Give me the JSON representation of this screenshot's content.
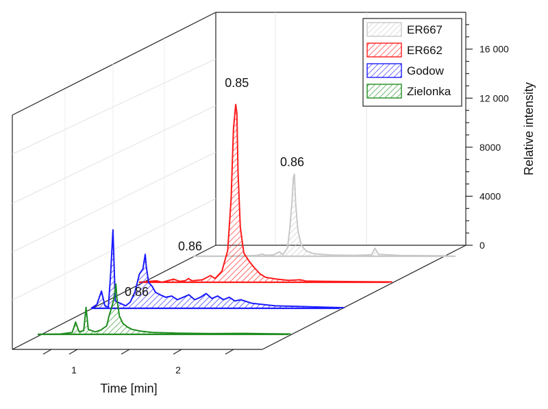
{
  "chart_data": {
    "type": "line",
    "subtype": "3d-waterfall",
    "xlabel": "Time [min]",
    "zlabel": "Relative intensity",
    "x_ticks": [
      1,
      2
    ],
    "z_ticks": [
      "0",
      "4000",
      "8000",
      "12 000",
      "16 000"
    ],
    "zlim": [
      0,
      19000
    ],
    "grid": true,
    "legend_position": "top-right",
    "series": [
      {
        "name": "ER667",
        "color": "#c8c8c8",
        "peak_label": "0.86",
        "peak_label_at": [
          0.86,
          7000
        ],
        "points": [
          [
            0.3,
            0
          ],
          [
            0.55,
            60
          ],
          [
            0.6,
            180
          ],
          [
            0.63,
            80
          ],
          [
            0.7,
            120
          ],
          [
            0.75,
            350
          ],
          [
            0.78,
            120
          ],
          [
            0.82,
            700
          ],
          [
            0.84,
            2300
          ],
          [
            0.86,
            4600
          ],
          [
            0.87,
            6400
          ],
          [
            0.88,
            6700
          ],
          [
            0.89,
            4400
          ],
          [
            0.91,
            2100
          ],
          [
            0.94,
            900
          ],
          [
            0.98,
            450
          ],
          [
            1.05,
            200
          ],
          [
            1.2,
            100
          ],
          [
            1.4,
            70
          ],
          [
            1.55,
            120
          ],
          [
            1.58,
            650
          ],
          [
            1.61,
            150
          ],
          [
            1.8,
            60
          ],
          [
            2.2,
            40
          ]
        ]
      },
      {
        "name": "ER662",
        "color": "#ff1a1a",
        "peak_label": "0.85",
        "peak_label_at": [
          0.85,
          15600
        ],
        "points": [
          [
            0.0,
            0
          ],
          [
            0.08,
            60
          ],
          [
            0.15,
            120
          ],
          [
            0.2,
            0
          ],
          [
            0.3,
            250
          ],
          [
            0.35,
            80
          ],
          [
            0.4,
            120
          ],
          [
            0.43,
            300
          ],
          [
            0.46,
            120
          ],
          [
            0.55,
            200
          ],
          [
            0.62,
            550
          ],
          [
            0.66,
            300
          ],
          [
            0.72,
            900
          ],
          [
            0.77,
            2600
          ],
          [
            0.8,
            6800
          ],
          [
            0.82,
            12500
          ],
          [
            0.84,
            14500
          ],
          [
            0.85,
            13800
          ],
          [
            0.86,
            9000
          ],
          [
            0.88,
            4500
          ],
          [
            0.91,
            2400
          ],
          [
            0.95,
            1800
          ],
          [
            1.0,
            1200
          ],
          [
            1.05,
            700
          ],
          [
            1.1,
            400
          ],
          [
            1.2,
            250
          ],
          [
            1.3,
            150
          ],
          [
            1.4,
            200
          ],
          [
            1.45,
            100
          ],
          [
            1.6,
            80
          ],
          [
            2.0,
            40
          ],
          [
            2.2,
            30
          ]
        ]
      },
      {
        "name": "Godow",
        "color": "#1a1aff",
        "peak_label": "0.86",
        "peak_label_at": [
          0.86,
          4400
        ],
        "points": [
          [
            0.0,
            0
          ],
          [
            0.05,
            300
          ],
          [
            0.09,
            1400
          ],
          [
            0.12,
            200
          ],
          [
            0.15,
            100
          ],
          [
            0.17,
            2900
          ],
          [
            0.19,
            6400
          ],
          [
            0.21,
            600
          ],
          [
            0.3,
            200
          ],
          [
            0.34,
            500
          ],
          [
            0.38,
            1300
          ],
          [
            0.42,
            2800
          ],
          [
            0.45,
            3200
          ],
          [
            0.47,
            4400
          ],
          [
            0.48,
            3400
          ],
          [
            0.5,
            2100
          ],
          [
            0.53,
            1800
          ],
          [
            0.56,
            1300
          ],
          [
            0.6,
            1100
          ],
          [
            0.65,
            900
          ],
          [
            0.7,
            1000
          ],
          [
            0.75,
            700
          ],
          [
            0.8,
            900
          ],
          [
            0.85,
            1100
          ],
          [
            0.9,
            700
          ],
          [
            0.95,
            900
          ],
          [
            1.0,
            1200
          ],
          [
            1.05,
            800
          ],
          [
            1.1,
            1000
          ],
          [
            1.15,
            700
          ],
          [
            1.2,
            900
          ],
          [
            1.25,
            600
          ],
          [
            1.3,
            700
          ],
          [
            1.4,
            400
          ],
          [
            1.5,
            300
          ],
          [
            1.6,
            200
          ],
          [
            1.8,
            150
          ],
          [
            2.0,
            100
          ],
          [
            2.2,
            50
          ]
        ]
      },
      {
        "name": "Zielonka",
        "color": "#1f8c1f",
        "peak_label": "0.86",
        "peak_label_at": [
          0.86,
          2800
        ],
        "points": [
          [
            0.0,
            0
          ],
          [
            0.2,
            30
          ],
          [
            0.3,
            150
          ],
          [
            0.33,
            1000
          ],
          [
            0.36,
            200
          ],
          [
            0.4,
            300
          ],
          [
            0.42,
            2200
          ],
          [
            0.44,
            400
          ],
          [
            0.5,
            200
          ],
          [
            0.55,
            350
          ],
          [
            0.6,
            700
          ],
          [
            0.62,
            1500
          ],
          [
            0.64,
            2100
          ],
          [
            0.66,
            2800
          ],
          [
            0.68,
            4100
          ],
          [
            0.69,
            2800
          ],
          [
            0.71,
            1500
          ],
          [
            0.74,
            900
          ],
          [
            0.78,
            600
          ],
          [
            0.82,
            400
          ],
          [
            0.9,
            250
          ],
          [
            1.0,
            150
          ],
          [
            1.2,
            100
          ],
          [
            1.5,
            60
          ],
          [
            1.8,
            80
          ],
          [
            2.0,
            50
          ],
          [
            2.2,
            30
          ]
        ]
      }
    ]
  }
}
